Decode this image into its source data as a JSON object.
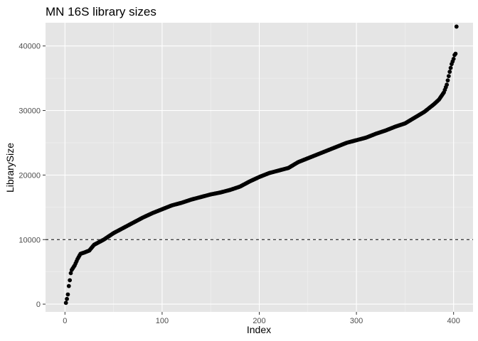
{
  "chart_data": {
    "type": "scatter",
    "title": "MN 16S library sizes",
    "xlabel": "Index",
    "ylabel": "LibrarySize",
    "xlim": [
      -20,
      420
    ],
    "ylim": [
      -1200,
      43600
    ],
    "x_ticks": [
      0,
      100,
      200,
      300,
      400
    ],
    "y_ticks": [
      0,
      10000,
      20000,
      30000,
      40000
    ],
    "x_tick_labels": [
      "0",
      "100",
      "200",
      "300",
      "400"
    ],
    "y_tick_labels": [
      "0",
      "10000",
      "20000",
      "30000",
      "40000"
    ],
    "reference_line": {
      "y": 10000,
      "style": "dashed",
      "color": "#000000"
    },
    "n_points": 403,
    "curve_knots": [
      [
        1,
        200
      ],
      [
        2,
        800
      ],
      [
        3,
        1500
      ],
      [
        4,
        2800
      ],
      [
        5,
        3700
      ],
      [
        6,
        4800
      ],
      [
        7,
        5300
      ],
      [
        10,
        6000
      ],
      [
        13,
        7000
      ],
      [
        16,
        7800
      ],
      [
        20,
        8000
      ],
      [
        25,
        8300
      ],
      [
        30,
        9200
      ],
      [
        40,
        10000
      ],
      [
        50,
        11000
      ],
      [
        60,
        11800
      ],
      [
        70,
        12600
      ],
      [
        80,
        13400
      ],
      [
        90,
        14100
      ],
      [
        100,
        14700
      ],
      [
        110,
        15300
      ],
      [
        120,
        15700
      ],
      [
        130,
        16200
      ],
      [
        140,
        16600
      ],
      [
        150,
        17000
      ],
      [
        160,
        17300
      ],
      [
        170,
        17700
      ],
      [
        180,
        18200
      ],
      [
        190,
        19000
      ],
      [
        200,
        19700
      ],
      [
        210,
        20300
      ],
      [
        220,
        20700
      ],
      [
        230,
        21100
      ],
      [
        240,
        22000
      ],
      [
        250,
        22600
      ],
      [
        260,
        23200
      ],
      [
        270,
        23800
      ],
      [
        280,
        24400
      ],
      [
        290,
        25000
      ],
      [
        300,
        25400
      ],
      [
        310,
        25800
      ],
      [
        320,
        26400
      ],
      [
        330,
        26900
      ],
      [
        340,
        27500
      ],
      [
        350,
        28000
      ],
      [
        360,
        28900
      ],
      [
        370,
        29800
      ],
      [
        380,
        31000
      ],
      [
        385,
        31700
      ],
      [
        390,
        32800
      ],
      [
        393,
        34000
      ],
      [
        396,
        36000
      ],
      [
        398,
        37200
      ],
      [
        400,
        38000
      ],
      [
        401,
        38600
      ],
      [
        402,
        38800
      ],
      [
        403,
        43000
      ]
    ],
    "colors": {
      "panel_bg": "#e5e5e5",
      "grid_major": "#ffffff",
      "grid_minor": "#f2f2f2",
      "point": "#000000",
      "tick_text": "#4d4d4d"
    }
  }
}
